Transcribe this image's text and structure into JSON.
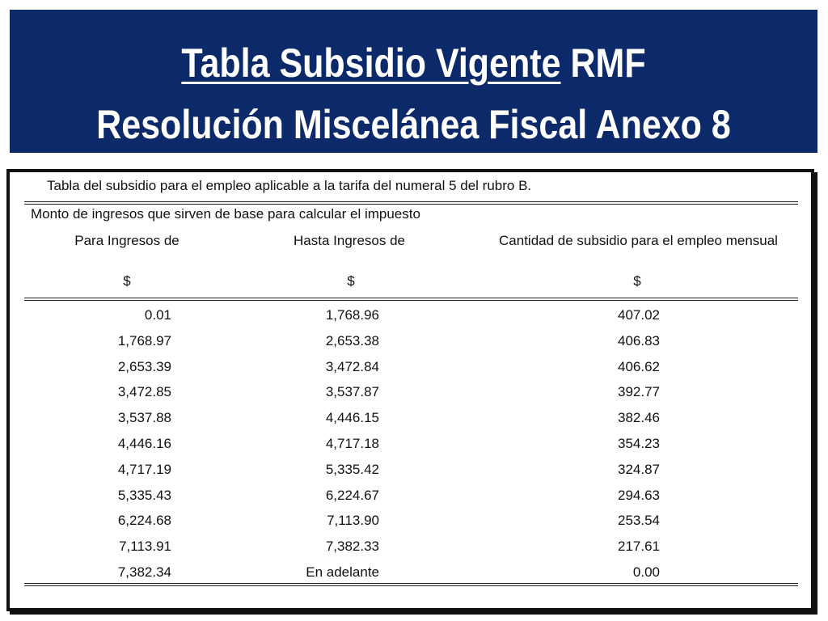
{
  "slide": {
    "title_underlined": "Tabla Subsidio Vigente",
    "title_rest": " RMF",
    "subtitle": "Resolución Miscelánea Fiscal Anexo 8"
  },
  "table": {
    "caption": "Tabla del subsidio para el empleo aplicable a la tarifa del numeral 5 del rubro B.",
    "group_label": "Monto de ingresos que sirven de base para calcular el impuesto",
    "headers": [
      "Para Ingresos de",
      "Hasta Ingresos de",
      "Cantidad de subsidio para el empleo mensual"
    ],
    "currency": [
      "$",
      "$",
      "$"
    ],
    "rows": [
      [
        "0.01",
        "1,768.96",
        "407.02"
      ],
      [
        "1,768.97",
        "2,653.38",
        "406.83"
      ],
      [
        "2,653.39",
        "3,472.84",
        "406.62"
      ],
      [
        "3,472.85",
        "3,537.87",
        "392.77"
      ],
      [
        "3,537.88",
        "4,446.15",
        "382.46"
      ],
      [
        "4,446.16",
        "4,717.18",
        "354.23"
      ],
      [
        "4,717.19",
        "5,335.42",
        "324.87"
      ],
      [
        "5,335.43",
        "6,224.67",
        "294.63"
      ],
      [
        "6,224.68",
        "7,113.90",
        "253.54"
      ],
      [
        "7,113.91",
        "7,382.33",
        "217.61"
      ],
      [
        "7,382.34",
        "En adelante",
        "0.00"
      ]
    ]
  },
  "colors": {
    "banner": "#0c2a6a",
    "title_text": "#ffffff"
  }
}
